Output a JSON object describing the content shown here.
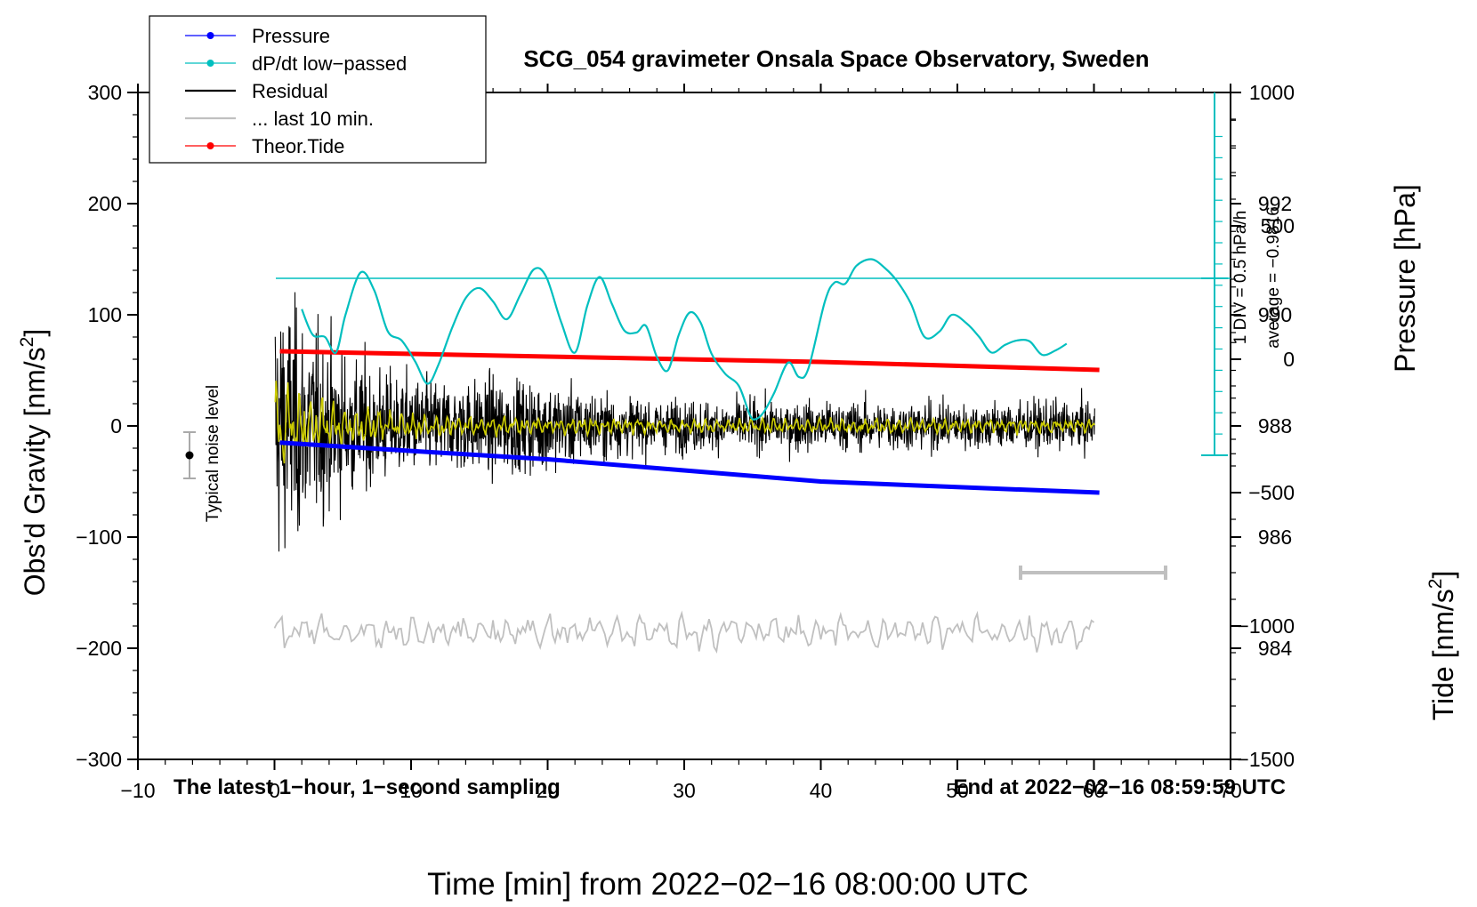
{
  "chart_data": {
    "type": "line",
    "title": "SCG_054 gravimeter Onsala Space Observatory, Sweden",
    "xlabel": "Time [min] from 2022−02−16 08:00:00 UTC",
    "ylabel_main": "Obs'd Gravity [nm/s",
    "ylabel_sup": "2",
    "ylabel_close": "]",
    "ylabel_pressure": "Pressure [hPa]",
    "ylabel_tide": "Tide [nm/s",
    "xlim": [
      -10,
      70
    ],
    "ylim": [
      -300,
      300
    ],
    "pressure_lim": [
      982,
      994
    ],
    "tide_lim": [
      -1500,
      1000
    ],
    "x_ticks": [
      "−10",
      "0",
      "10",
      "20",
      "30",
      "40",
      "50",
      "60",
      "70"
    ],
    "y_ticks": [
      "−300",
      "−200",
      "−100",
      "0",
      "100",
      "200",
      "300"
    ],
    "pressure_ticks": [
      "984",
      "986",
      "988",
      "990",
      "992"
    ],
    "tide_ticks": [
      "−1500",
      "−1000",
      "−500",
      "0",
      "500",
      "1000"
    ],
    "legend": [
      {
        "label": "Pressure",
        "color": "#0000ff",
        "marker": true
      },
      {
        "label": "dP/dt low−passed",
        "color": "#00bfbf",
        "marker": true
      },
      {
        "label": "Residual",
        "color": "#000000",
        "marker": false
      },
      {
        "label": "... last 10 min.",
        "color": "#c0c0c0",
        "marker": false
      },
      {
        "label": "Theor.Tide",
        "color": "#ff0000",
        "marker": true
      }
    ],
    "annotations": {
      "bottom_left": "The latest 1−hour, 1−second sampling",
      "bottom_right": "End at 2022−02−16 08:59:59 UTC",
      "noise_label": "Typical noise level",
      "div_label": "1 DIV = 0.5 hPa/h",
      "average_label": "average = −0.9816"
    },
    "colors": {
      "pressure": "#0000ff",
      "dpdt": "#00bfbf",
      "residual": "#000000",
      "residual_filtered": "#cccc00",
      "last10": "#c0c0c0",
      "tide": "#ff0000"
    },
    "pressure": {
      "x": [
        0.4,
        10,
        20,
        30,
        40,
        50,
        60.4
      ],
      "y": [
        987.7,
        987.55,
        987.4,
        987.2,
        987.0,
        986.9,
        986.8
      ]
    },
    "tide": {
      "x": [
        0.4,
        20,
        40,
        60.4
      ],
      "y": [
        30,
        10,
        -10,
        -40
      ]
    },
    "dpdt": {
      "x": [
        2.0,
        2.8,
        3.7,
        4.5,
        5.2,
        6.3,
        7.3,
        8.3,
        9.3,
        10.3,
        11.2,
        12.0,
        13.0,
        14.0,
        15.0,
        16.0,
        17.0,
        18.0,
        19.0,
        19.9,
        21.0,
        22.0,
        22.9,
        23.8,
        24.7,
        25.6,
        26.5,
        27.2,
        28.0,
        28.8,
        29.6,
        30.4,
        31.2,
        32.0,
        33.0,
        34.0,
        34.8,
        35.2,
        35.8,
        36.6,
        37.6,
        38.4,
        39.1,
        40.3,
        41.0,
        41.8,
        42.6,
        43.7,
        44.7,
        45.6,
        46.6,
        47.6,
        48.7,
        49.6,
        50.7,
        51.6,
        52.5,
        53.5,
        54.4,
        55.3,
        56.2,
        57.2,
        58.0
      ],
      "y": [
        105,
        82,
        80,
        66,
        100,
        138,
        122,
        85,
        77,
        58,
        38,
        55,
        88,
        115,
        124,
        112,
        96,
        118,
        141,
        134,
        93,
        66,
        108,
        134,
        110,
        86,
        84,
        90,
        62,
        50,
        82,
        102,
        93,
        65,
        47,
        36,
        10,
        6,
        12,
        30,
        57,
        44,
        52,
        112,
        129,
        128,
        144,
        150,
        142,
        130,
        110,
        80,
        85,
        100,
        92,
        80,
        66,
        73,
        77,
        76,
        64,
        68,
        74
      ]
    }
  }
}
